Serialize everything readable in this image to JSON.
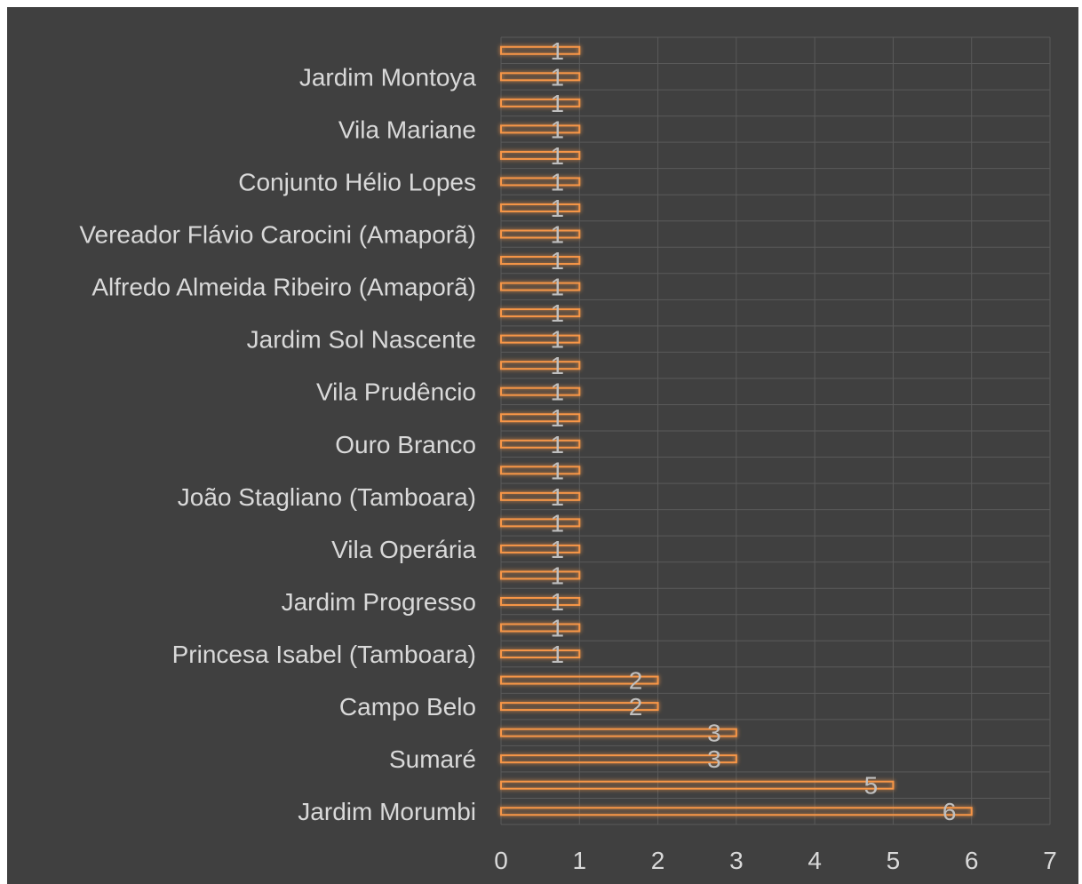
{
  "chart_data": {
    "type": "bar",
    "orientation": "horizontal",
    "title": "",
    "xlabel": "",
    "ylabel": "",
    "xlim": [
      0,
      7
    ],
    "x_ticks": [
      "0",
      "1",
      "2",
      "3",
      "4",
      "5",
      "6",
      "7"
    ],
    "grid": true,
    "legend": "none",
    "total_rows": 30,
    "rows_bottom_to_top": [
      {
        "label": "Jardim Morumbi",
        "value": 6
      },
      {
        "label": "",
        "value": 5
      },
      {
        "label": "Sumaré",
        "value": 3
      },
      {
        "label": "",
        "value": 3
      },
      {
        "label": "Campo Belo",
        "value": 2
      },
      {
        "label": "",
        "value": 2
      },
      {
        "label": "Princesa Isabel (Tamboara)",
        "value": 1
      },
      {
        "label": "",
        "value": 1
      },
      {
        "label": "Jardim Progresso",
        "value": 1
      },
      {
        "label": "",
        "value": 1
      },
      {
        "label": "Vila Operária",
        "value": 1
      },
      {
        "label": "",
        "value": 1
      },
      {
        "label": "João Stagliano (Tamboara)",
        "value": 1
      },
      {
        "label": "",
        "value": 1
      },
      {
        "label": "Ouro Branco",
        "value": 1
      },
      {
        "label": "",
        "value": 1
      },
      {
        "label": "Vila Prudêncio",
        "value": 1
      },
      {
        "label": "",
        "value": 1
      },
      {
        "label": "Jardim Sol Nascente",
        "value": 1
      },
      {
        "label": "",
        "value": 1
      },
      {
        "label": "Alfredo Almeida Ribeiro (Amaporã)",
        "value": 1
      },
      {
        "label": "",
        "value": 1
      },
      {
        "label": "Vereador Flávio Carocini (Amaporã)",
        "value": 1
      },
      {
        "label": "",
        "value": 1
      },
      {
        "label": "Conjunto Hélio Lopes",
        "value": 1
      },
      {
        "label": "",
        "value": 1
      },
      {
        "label": "Vila Mariane",
        "value": 1
      },
      {
        "label": "",
        "value": 1
      },
      {
        "label": "Jardim Montoya",
        "value": 1
      },
      {
        "label": "",
        "value": 1
      }
    ],
    "colors": {
      "background": "#404040",
      "bar_outline": "#f79646",
      "gridline": "#5a5a5a",
      "text": "#d9d9d9"
    }
  }
}
